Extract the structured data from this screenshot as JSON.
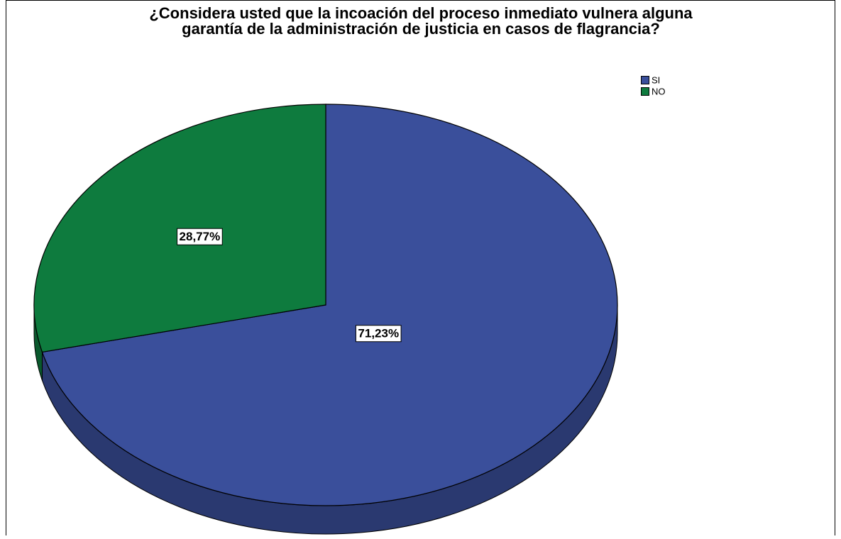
{
  "chart_data": {
    "type": "pie",
    "title": [
      "¿Considera usted que la incoación del proceso inmediato vulnera alguna",
      "garantía de la administración de justicia en casos de flagrancia?"
    ],
    "categories": [
      "SI",
      "NO"
    ],
    "values": [
      71.23,
      28.77
    ],
    "value_labels": [
      "71,23%",
      "28,77%"
    ],
    "colors": [
      "#3a4f9b",
      "#0e7b3e"
    ],
    "legend": "top-right"
  }
}
